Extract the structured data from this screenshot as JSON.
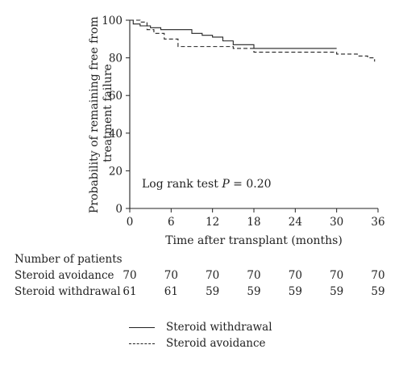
{
  "chart_data": {
    "type": "line",
    "ylabel": "Probability of remaining free from treatment failure",
    "xlabel": "Time after transplant (months)",
    "xlim": [
      0,
      36
    ],
    "ylim": [
      0,
      100
    ],
    "xticks": [
      0,
      6,
      12,
      18,
      24,
      30,
      36
    ],
    "yticks": [
      0,
      20,
      40,
      60,
      80,
      100
    ],
    "annotation": {
      "prefix": "Log rank test ",
      "stat": "P",
      "suffix": " = 0.20"
    },
    "grid": false,
    "legend_placement": "bottom",
    "series": [
      {
        "name": "Steroid withdrawal",
        "style": "solid",
        "step_x": [
          0,
          0.5,
          1.5,
          3,
          4.5,
          9,
          10.5,
          12,
          13.5,
          15,
          18,
          30
        ],
        "step_y": [
          100,
          98,
          97,
          96,
          95,
          93,
          92,
          91,
          89,
          87,
          85,
          85
        ]
      },
      {
        "name": "Steroid avoidance",
        "style": "dashed",
        "step_x": [
          0,
          1.5,
          2.5,
          3.5,
          5,
          7,
          15,
          18,
          30,
          33,
          34.5,
          35.5
        ],
        "step_y": [
          100,
          99,
          95,
          93,
          90,
          86,
          85,
          83,
          82,
          81,
          80,
          78
        ]
      }
    ]
  },
  "table": {
    "header": "Number of patients",
    "rows": [
      {
        "label": "Steroid avoidance",
        "values": [
          "70",
          "70",
          "70",
          "70",
          "70",
          "70",
          "70"
        ]
      },
      {
        "label": "Steroid withdrawal",
        "values": [
          "61",
          "61",
          "59",
          "59",
          "59",
          "59",
          "59"
        ]
      }
    ]
  },
  "legend": [
    {
      "label": "Steroid withdrawal",
      "style": "solid"
    },
    {
      "label": "Steroid avoidance",
      "style": "dashed"
    }
  ]
}
